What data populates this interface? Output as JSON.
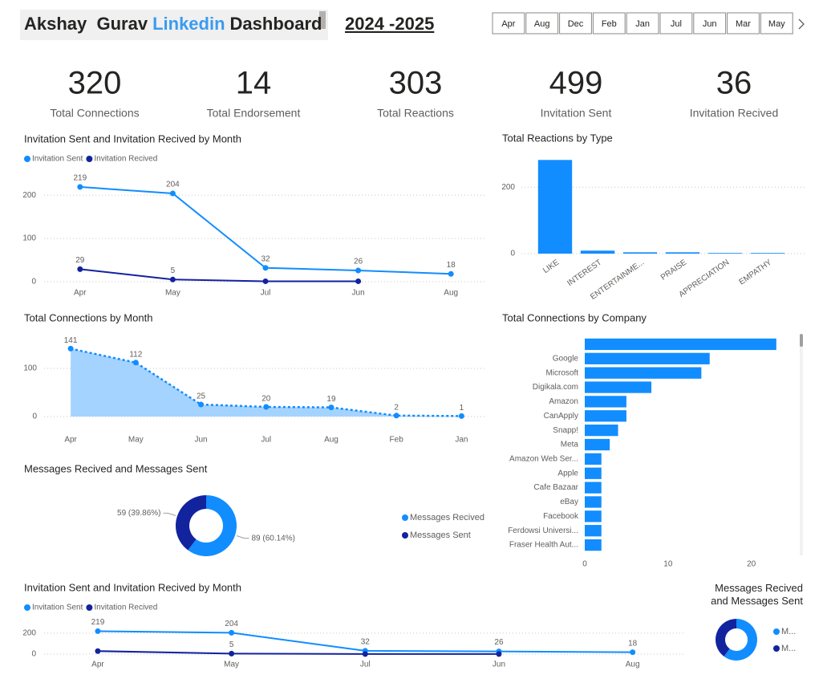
{
  "header": {
    "title_parts": [
      "Akshay  Gurav",
      "Linkedin",
      "Dashboard"
    ],
    "period": "2024 -2025"
  },
  "slicer": [
    "Apr",
    "Aug",
    "Dec",
    "Feb",
    "Jan",
    "Jul",
    "Jun",
    "Mar",
    "May"
  ],
  "kpis": [
    {
      "value": 320,
      "label": "Total Connections"
    },
    {
      "value": 14,
      "label": "Total Endorsement"
    },
    {
      "value": 303,
      "label": "Total Reactions"
    },
    {
      "value": 499,
      "label": "Invitation Sent"
    },
    {
      "value": 36,
      "label": "Invitation Recived"
    }
  ],
  "chart_data": [
    {
      "type": "line",
      "title": "Invitation Sent and Invitation Recived by Month",
      "categories": [
        "Apr",
        "May",
        "Jul",
        "Jun",
        "Aug"
      ],
      "series": [
        {
          "name": "Invitation Sent",
          "color": "#118DFF",
          "values": [
            219,
            204,
            32,
            26,
            18
          ]
        },
        {
          "name": "Invitation Recived",
          "color": "#12239E",
          "values": [
            29,
            5,
            1,
            1,
            null
          ],
          "value_labels": [
            "29",
            "5",
            null,
            null,
            null
          ]
        }
      ],
      "ylim": [
        0,
        230
      ],
      "yticks": [
        0,
        100,
        200
      ],
      "grid": true
    },
    {
      "type": "bar",
      "title": "Total Reactions by Type",
      "categories": [
        "LIKE",
        "INTEREST",
        "ENTERTAINME...",
        "PRAISE",
        "APPRECIATION",
        "EMPATHY"
      ],
      "values": [
        282,
        9,
        4,
        4,
        2,
        2
      ],
      "color": "#118DFF",
      "ylim": [
        0,
        290
      ],
      "yticks": [
        0,
        200
      ],
      "grid": true
    },
    {
      "type": "area",
      "title": "Total Connections by Month",
      "categories": [
        "Apr",
        "May",
        "Jun",
        "Jul",
        "Aug",
        "Feb",
        "Jan"
      ],
      "values": [
        141,
        112,
        25,
        20,
        19,
        2,
        1
      ],
      "color": "#118DFF",
      "fill": "#A5D3FF",
      "ylim": [
        0,
        150
      ],
      "yticks": [
        0,
        100
      ],
      "grid": true
    },
    {
      "type": "bar",
      "orientation": "horizontal",
      "title": "Total Connections by Company",
      "categories": [
        null,
        "Google",
        "Microsoft",
        "Digikala.com",
        "Amazon",
        "CanApply",
        "Snapp!",
        "Meta",
        "Amazon Web Ser...",
        "Apple",
        "Cafe Bazaar",
        "eBay",
        "Facebook",
        "Ferdowsi Universi...",
        "Fraser Health Aut..."
      ],
      "values": [
        23,
        15,
        14,
        8,
        5,
        5,
        4,
        3,
        2,
        2,
        2,
        2,
        2,
        2,
        2
      ],
      "color": "#118DFF",
      "xlim": [
        0,
        23.5
      ],
      "xticks": [
        0,
        10,
        20
      ],
      "grid": false
    },
    {
      "type": "donut",
      "title": "Messages Recived and Messages Sent",
      "categories": [
        "Messages Recived",
        "Messages Sent"
      ],
      "values": [
        89,
        59
      ],
      "value_labels": [
        "89 (60.14%)",
        "59 (39.86%)"
      ],
      "colors": [
        "#118DFF",
        "#12239E"
      ]
    },
    {
      "type": "line",
      "title": "Invitation Sent and Invitation Recived by Month",
      "categories": [
        "Apr",
        "May",
        "Jul",
        "Jun",
        "Aug"
      ],
      "series": [
        {
          "name": "Invitation Sent",
          "color": "#118DFF",
          "values": [
            219,
            204,
            32,
            26,
            18
          ]
        },
        {
          "name": "Invitation Recived",
          "color": "#12239E",
          "values": [
            29,
            5,
            1,
            1,
            null
          ],
          "value_labels": [
            null,
            "5",
            null,
            null,
            null
          ]
        }
      ],
      "ylim": [
        0,
        230
      ],
      "yticks": [
        0,
        200
      ],
      "grid": true
    },
    {
      "type": "donut",
      "title": "Messages Recived and Messages Sent",
      "categories": [
        "M...",
        "M..."
      ],
      "values": [
        89,
        59
      ],
      "colors": [
        "#118DFF",
        "#12239E"
      ]
    }
  ]
}
